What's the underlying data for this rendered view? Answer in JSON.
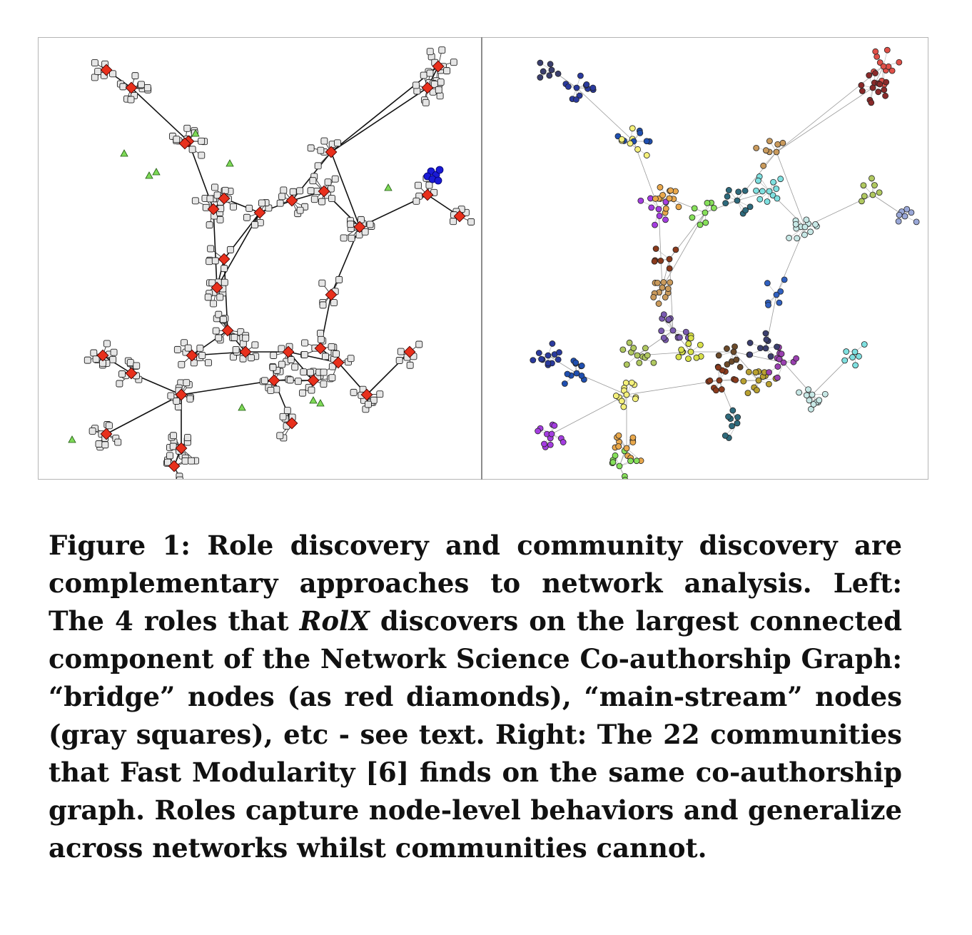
{
  "caption": {
    "label": "Figure 1:",
    "p1": " Role discovery and community discovery are complementary approaches to network analysis. ",
    "left_label": "Left:",
    "p2": " The 4 roles that ",
    "method": "RolX",
    "p3": " discovers on the largest connected component of the Network Science Co-authorship Graph: “bridge” nodes (as red diamonds), “main-stream” nodes (gray squares), etc - see text. ",
    "right_label": "Right:",
    "p4": " The 22 communities that Fast Modularity [6] finds on the same co-authorship graph. Roles capture node-level behaviors and generalize across networks whilst communities cannot."
  },
  "colors": {
    "bridge": "#e8301c",
    "mainstream": "#e6e6e6",
    "triangle": "#7ed957",
    "blue_role": "#1a1ad6",
    "communities": [
      "#3b3f6e",
      "#2a3a9e",
      "#1f4fb0",
      "#f4f07a",
      "#a43de0",
      "#e9a84c",
      "#86e05a",
      "#8a3a1c",
      "#2e6a7c",
      "#c99a5c",
      "#c7e8e6",
      "#7fe0e0",
      "#b0c860",
      "#9aa8d8",
      "#e05048",
      "#8a2a2a",
      "#7a5ab0",
      "#d8e048",
      "#6b4a2a",
      "#b8a030",
      "#3060c0",
      "#9a40b0"
    ]
  },
  "legend_left": {
    "bridge_role": "bridge",
    "mainstream_role": "main-stream"
  }
}
